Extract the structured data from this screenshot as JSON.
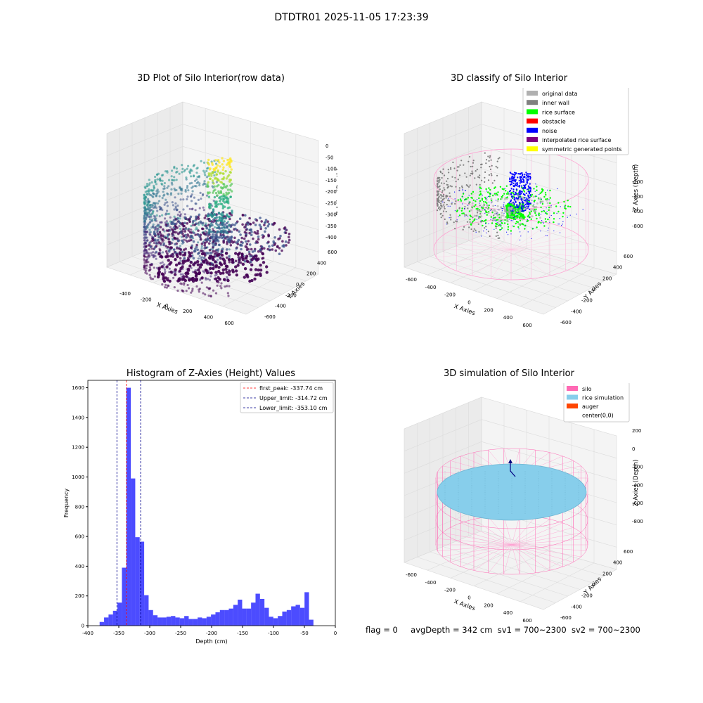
{
  "suptitle": "DTDTR01 2025-11-05 17:23:39",
  "panels": {
    "raw": {
      "title": "3D Plot of Silo Interior(row data)",
      "x_ticks": [
        "-400",
        "-200",
        "0",
        "200",
        "400",
        "600"
      ],
      "y_ticks": [
        "-600",
        "-400",
        "-200",
        "0",
        "200",
        "400",
        "600"
      ],
      "z_ticks": [
        "0",
        "-50",
        "-100",
        "-150",
        "-200",
        "-250",
        "-300",
        "-350",
        "-400"
      ],
      "xlabel": "X Axies",
      "ylabel": "Y Axies",
      "zlabel": "Z Axies (Depth)"
    },
    "classify": {
      "title": "3D classify of Silo Interior",
      "x_ticks": [
        "-600",
        "-400",
        "-200",
        "0",
        "200",
        "400",
        "600"
      ],
      "y_ticks": [
        "-600",
        "-400",
        "-200",
        "0",
        "200",
        "400",
        "600"
      ],
      "z_ticks": [
        "0",
        "-200",
        "-400",
        "-600",
        "-800"
      ],
      "xlabel": "X Axies",
      "ylabel": "Y Axies",
      "zlabel": "Z Axies (Depth)",
      "legend": [
        {
          "label": "original data",
          "color": "#b0b0b0"
        },
        {
          "label": "inner wall",
          "color": "#808080"
        },
        {
          "label": "rice surface",
          "color": "#00ff00"
        },
        {
          "label": "obstacle",
          "color": "#ff0000"
        },
        {
          "label": "noise",
          "color": "#0000ff"
        },
        {
          "label": "interpolated rice surface",
          "color": "#800080"
        },
        {
          "label": "symmetric generated points",
          "color": "#ffff00"
        }
      ]
    },
    "simulation": {
      "title": "3D simulation of Silo Interior",
      "x_ticks": [
        "-600",
        "-400",
        "-200",
        "0",
        "200",
        "400",
        "600"
      ],
      "y_ticks": [
        "-600",
        "-400",
        "-200",
        "0",
        "200",
        "400",
        "600"
      ],
      "z_ticks": [
        "200",
        "0",
        "-200",
        "-400",
        "-600",
        "-800"
      ],
      "xlabel": "X Axies",
      "ylabel": "Y Axies",
      "zlabel": "Z Axies (Depth)",
      "legend": [
        {
          "label": "silo",
          "color": "#ff69b4"
        },
        {
          "label": "rice simulation",
          "color": "#87ceeb"
        },
        {
          "label": "auger",
          "color": "#ff4500"
        },
        {
          "label": "center(0,0)",
          "color": ""
        }
      ]
    }
  },
  "chart_data": [
    {
      "type": "bar",
      "title": "Histogram of Z-Axies (Height) Values",
      "xlabel": "Depth (cm)",
      "ylabel": "Frequency",
      "xlim": [
        -400,
        0
      ],
      "ylim": [
        0,
        1650
      ],
      "x_ticks": [
        -400,
        -350,
        -300,
        -250,
        -200,
        -150,
        -100,
        -50,
        0
      ],
      "y_ticks": [
        0,
        200,
        400,
        600,
        800,
        1000,
        1200,
        1400,
        1600
      ],
      "bin_width": 7.2,
      "bin_starts": [
        -381,
        -373.8,
        -366.6,
        -359.4,
        -352.2,
        -345,
        -337.8,
        -330.6,
        -323.4,
        -316.2,
        -309,
        -301.8,
        -294.6,
        -287.4,
        -280.2,
        -273,
        -265.8,
        -258.6,
        -251.4,
        -244.2,
        -237,
        -229.8,
        -222.6,
        -215.4,
        -208.2,
        -201,
        -193.8,
        -186.6,
        -179.4,
        -172.2,
        -165,
        -157.8,
        -150.6,
        -143.4,
        -136.2,
        -129,
        -121.8,
        -114.6,
        -107.4,
        -100.2,
        -93,
        -85.8,
        -78.6,
        -71.4,
        -64.2,
        -57,
        -49.8,
        -42.6,
        -35.4,
        -28.2,
        -21
      ],
      "values": [
        25,
        55,
        75,
        100,
        155,
        390,
        1600,
        990,
        595,
        565,
        205,
        105,
        70,
        55,
        55,
        60,
        65,
        55,
        50,
        65,
        45,
        45,
        55,
        50,
        60,
        75,
        90,
        105,
        105,
        115,
        140,
        175,
        115,
        115,
        155,
        215,
        180,
        120,
        60,
        50,
        65,
        95,
        105,
        130,
        140,
        120,
        225,
        40,
        0,
        0,
        0
      ],
      "series_color": "#0000ff",
      "vlines": [
        {
          "name": "first_peak: -337.74 cm",
          "x": -337.74,
          "color": "#ff0000"
        },
        {
          "name": "Upper_limit: -314.72 cm",
          "x": -314.72,
          "color": "#00008b"
        },
        {
          "name": "Lower_limit: -353.10 cm",
          "x": -353.1,
          "color": "#00008b"
        }
      ],
      "legend_position": "top-right"
    }
  ],
  "footer": {
    "flag": "flag = 0",
    "avg": "avgDepth = 342 cm",
    "sv1": "sv1 = 700~2300",
    "sv2": "sv2 = 700~2300"
  }
}
